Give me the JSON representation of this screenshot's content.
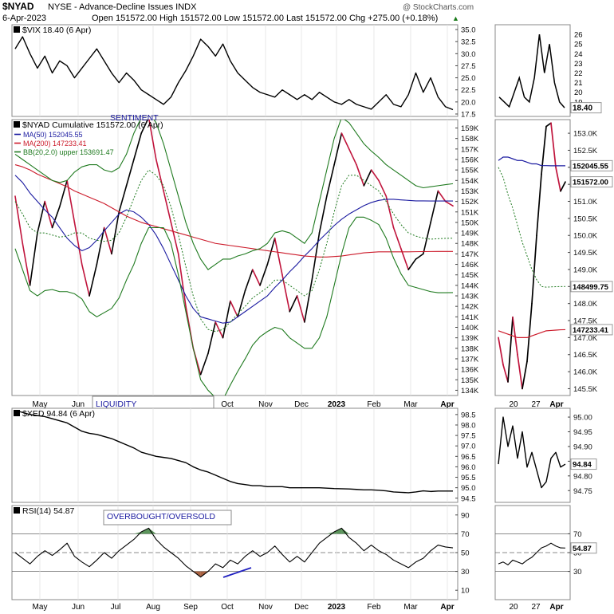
{
  "header": {
    "symbol": "$NYAD",
    "description": "NYSE - Advance-Decline Issues  INDX",
    "watermark": "@ StockCharts.com",
    "date": "6-Apr-2023",
    "quote": "Open 151572.00  High 151572.00  Low 151572.00  Last 151572.00  Chg +275.00 (+0.18%)",
    "quote_arrow": "▲"
  },
  "colors": {
    "price": "#000000",
    "decline": "#c0143c",
    "ma50": "#1a1aa0",
    "ma200": "#cc1a2a",
    "bband": "#1f7a1f",
    "rsi_fill": "#4a8a4a",
    "rsi_low_fill": "#a0522d",
    "annotation": "#1a1aa0",
    "panel_border": "#888888"
  },
  "months_main": [
    "May",
    "Jun",
    "Jul",
    "Aug",
    "Sep",
    "Oct",
    "Nov",
    "Dec",
    "2023",
    "Feb",
    "Mar",
    "Apr"
  ],
  "months_bottom": [
    "May",
    "Jun",
    "Jul",
    "Aug",
    "Sep",
    "Oct",
    "Nov",
    "Dec",
    "2023",
    "Feb",
    "Mar",
    "Apr"
  ],
  "months_side": [
    "20",
    "27",
    "Apr"
  ],
  "chart_data": [
    {
      "id": "vix",
      "type": "line",
      "title": "$VIX 18.40 (6 Apr)",
      "ylim": [
        17,
        36
      ],
      "ticks": [
        "35.0",
        "32.5",
        "30.0",
        "27.5",
        "25.0",
        "22.5",
        "20.0",
        "17.5"
      ],
      "series": [
        {
          "name": "$VIX",
          "values": [
            31.0,
            33.5,
            30.0,
            27.0,
            29.5,
            26.0,
            28.5,
            27.5,
            25.0,
            27.0,
            29.0,
            31.0,
            28.5,
            26.0,
            24.0,
            26.0,
            24.5,
            22.5,
            21.5,
            20.5,
            19.5,
            21.0,
            24.0,
            26.5,
            29.5,
            33.0,
            31.5,
            29.5,
            32.0,
            28.5,
            26.0,
            24.5,
            23.0,
            22.0,
            21.5,
            21.0,
            22.5,
            21.5,
            20.5,
            21.5,
            20.5,
            22.0,
            21.0,
            20.0,
            19.5,
            20.5,
            19.5,
            19.0,
            18.5,
            20.0,
            21.5,
            19.5,
            19.0,
            21.5,
            26.0,
            22.0,
            25.0,
            21.0,
            19.0,
            18.4
          ]
        }
      ],
      "last_label": "18.40"
    },
    {
      "id": "nyad",
      "type": "line",
      "title": "$NYAD Cumulative 151572.00 (6 Apr)",
      "ylim": [
        133500,
        159800
      ],
      "ticks": [
        "159K",
        "158K",
        "157K",
        "156K",
        "155K",
        "154K",
        "153K",
        "152K",
        "151K",
        "150K",
        "149K",
        "148K",
        "147K",
        "146K",
        "145K",
        "144K",
        "143K",
        "142K",
        "141K",
        "140K",
        "139K",
        "138K",
        "137K",
        "136K",
        "135K",
        "134K"
      ],
      "annotation": "SENTIMENT",
      "series": [
        {
          "name": "$NYAD Cumulative",
          "values": [
            152500,
            148000,
            144000,
            149000,
            152000,
            149500,
            151500,
            154000,
            150000,
            146000,
            143000,
            146000,
            149500,
            147000,
            151000,
            153500,
            156000,
            158500,
            160000,
            156000,
            153000,
            150000,
            147000,
            142000,
            138000,
            135500,
            137500,
            140500,
            139000,
            142500,
            141000,
            143500,
            145500,
            144000,
            146000,
            148500,
            145000,
            141500,
            143000,
            140500,
            144500,
            149000,
            152500,
            155500,
            158500,
            157000,
            155500,
            153500,
            155000,
            154000,
            152500,
            149500,
            147500,
            145500,
            146500,
            147000,
            150000,
            153000,
            152000,
            151572
          ]
        },
        {
          "name": "MA(50) 152045.55",
          "values": [
            154500,
            153800,
            152800,
            152000,
            151200,
            150500,
            149500,
            148500,
            147800,
            147300,
            147600,
            148300,
            149200,
            150000,
            150800,
            151200,
            151000,
            150500,
            149800,
            148800,
            147500,
            146000,
            144500,
            143000,
            141800,
            141000,
            140800,
            140600,
            140400,
            140500,
            141000,
            141500,
            142000,
            142500,
            143000,
            143800,
            144500,
            145300,
            146000,
            146800,
            147500,
            148300,
            149000,
            149700,
            150300,
            150800,
            151200,
            151600,
            151900,
            152100,
            152200,
            152200,
            152150,
            152100,
            152050,
            152050,
            152045,
            152045,
            152045,
            152045
          ]
        },
        {
          "name": "MA(200) 147233.41",
          "values": [
            155500,
            155300,
            155000,
            154600,
            154300,
            154000,
            153700,
            153400,
            153000,
            152700,
            152400,
            152100,
            151800,
            151400,
            151000,
            150600,
            150300,
            150000,
            149800,
            149600,
            149400,
            149200,
            149000,
            148800,
            148600,
            148400,
            148200,
            148000,
            147900,
            147800,
            147700,
            147600,
            147500,
            147400,
            147300,
            147200,
            147100,
            147000,
            146900,
            146800,
            146750,
            146700,
            146700,
            146750,
            146800,
            146900,
            147000,
            147100,
            147150,
            147200,
            147200,
            147200,
            147200,
            147200,
            147210,
            147220,
            147230,
            147233,
            147233,
            147233
          ]
        },
        {
          "name": "BB(20,2.0) upper 153691.47",
          "values": [
            156500,
            156000,
            155500,
            155000,
            154500,
            154000,
            153800,
            154000,
            154800,
            155300,
            155500,
            155500,
            155000,
            154800,
            155200,
            156500,
            158500,
            160000,
            160500,
            159500,
            157500,
            155000,
            152500,
            150000,
            148000,
            146500,
            145500,
            146000,
            146500,
            146500,
            146800,
            147000,
            147300,
            147500,
            148000,
            149000,
            149200,
            149000,
            148500,
            148000,
            149000,
            152000,
            155000,
            158000,
            160000,
            159500,
            158500,
            157500,
            156800,
            156200,
            155500,
            155000,
            154500,
            154000,
            153500,
            153300,
            153400,
            153500,
            153600,
            153691
          ]
        },
        {
          "name": "BB(20,2.0) mid 148499.75",
          "values": [
            152000,
            150800,
            149500,
            149000,
            149000,
            148800,
            148600,
            148700,
            149000,
            149000,
            148500,
            148300,
            148200,
            148300,
            149000,
            150500,
            152300,
            154000,
            155000,
            154500,
            153500,
            151500,
            148800,
            145800,
            143000,
            140800,
            139800,
            139600,
            139800,
            140500,
            141300,
            142000,
            142800,
            143300,
            143800,
            144500,
            144500,
            144000,
            143500,
            143000,
            143500,
            145500,
            148000,
            151000,
            153500,
            154500,
            154500,
            154000,
            153500,
            153000,
            152000,
            150800,
            149800,
            149000,
            148700,
            148500,
            148400,
            148450,
            148480,
            148500
          ]
        },
        {
          "name": "BB(20,2.0) lower 143308.03",
          "values": [
            147500,
            145500,
            143500,
            143000,
            143500,
            143600,
            143400,
            143400,
            143200,
            142700,
            141500,
            141000,
            141400,
            141800,
            142800,
            144500,
            146000,
            148000,
            149500,
            149500,
            149500,
            148000,
            145000,
            141500,
            138000,
            135000,
            134000,
            133300,
            133100,
            134500,
            135800,
            137000,
            138300,
            139100,
            139600,
            140000,
            139800,
            139000,
            138500,
            138000,
            138000,
            139000,
            141000,
            144000,
            147000,
            149500,
            150500,
            150500,
            150200,
            149800,
            148500,
            146600,
            145100,
            144000,
            143800,
            143600,
            143400,
            143300,
            143300,
            143308
          ]
        }
      ],
      "last_labels": [
        "153K",
        "152K",
        "151K"
      ]
    },
    {
      "id": "nyad_zoom",
      "type": "line",
      "ylim": [
        145300,
        153400
      ],
      "ticks": [
        "153.0K",
        "152.5K",
        "152.0K",
        "151.5K",
        "151.0K",
        "150.5K",
        "150.0K",
        "149.5K",
        "149.0K",
        "148.5K",
        "148.0K",
        "147.5K",
        "147.0K",
        "146.5K",
        "146.0K",
        "145.5K"
      ],
      "value_labels": [
        "152045.55",
        "151572.00",
        "148499.75",
        "147233.41"
      ],
      "series": [
        {
          "name": "$NYAD Cumulative",
          "values": [
            147000,
            146200,
            145700,
            147600,
            146500,
            145500,
            146300,
            148000,
            150000,
            151800,
            153200,
            153300,
            152000,
            151300,
            151572
          ]
        },
        {
          "name": "MA(50)",
          "values": [
            152200,
            152300,
            152300,
            152250,
            152200,
            152200,
            152150,
            152100,
            152100,
            152050,
            152050,
            152045,
            152045,
            152045,
            152045
          ]
        },
        {
          "name": "MA(200)",
          "values": [
            147200,
            147150,
            147100,
            147050,
            147000,
            147000,
            147000,
            147050,
            147100,
            147150,
            147200,
            147210,
            147220,
            147230,
            147233
          ]
        },
        {
          "name": "BB mid",
          "values": [
            152000,
            151700,
            151200,
            150800,
            150300,
            149800,
            149400,
            149000,
            148700,
            148500,
            148480,
            148490,
            148495,
            148498,
            148500
          ]
        }
      ]
    },
    {
      "id": "xed",
      "type": "line",
      "title": "$XED 94.84 (6 Apr)",
      "annotation": "LIQUIDITY",
      "ylim": [
        94.3,
        98.8
      ],
      "ticks": [
        "98.5",
        "98.0",
        "97.5",
        "97.0",
        "96.5",
        "96.0",
        "95.5",
        "95.0",
        "94.5"
      ],
      "series": [
        {
          "name": "$XED",
          "values": [
            98.7,
            98.6,
            98.5,
            98.45,
            98.4,
            98.3,
            98.2,
            98.1,
            97.9,
            97.7,
            97.6,
            97.55,
            97.45,
            97.35,
            97.2,
            97.05,
            96.9,
            96.7,
            96.6,
            96.5,
            96.45,
            96.4,
            96.3,
            96.2,
            96.0,
            95.85,
            95.75,
            95.6,
            95.45,
            95.3,
            95.2,
            95.15,
            95.1,
            95.1,
            95.05,
            95.05,
            95.05,
            95.0,
            95.0,
            95.0,
            95.0,
            95.0,
            94.98,
            94.96,
            94.95,
            94.94,
            94.92,
            94.9,
            94.9,
            94.88,
            94.85,
            94.8,
            94.78,
            94.76,
            94.8,
            94.85,
            94.82,
            94.84,
            94.84,
            94.84
          ]
        }
      ],
      "last_label": "94.84"
    },
    {
      "id": "xed_zoom",
      "type": "line",
      "ylim": [
        94.71,
        95.03
      ],
      "ticks": [
        "95.00",
        "94.95",
        "94.90",
        "94.85",
        "94.80",
        "94.75"
      ],
      "series": [
        {
          "name": "$XED",
          "values": [
            94.84,
            95.0,
            94.9,
            94.97,
            94.86,
            94.95,
            94.83,
            94.88,
            94.82,
            94.76,
            94.78,
            94.86,
            94.88,
            94.83,
            94.84
          ]
        }
      ],
      "last_label": "94.84"
    },
    {
      "id": "rsi",
      "type": "line",
      "title": "RSI(14) 54.87",
      "annotation": "OVERBOUGHT/OVERSOLD",
      "ylim": [
        0,
        100
      ],
      "ticks": [
        "90",
        "70",
        "50",
        "30",
        "10"
      ],
      "series": [
        {
          "name": "RSI(14)",
          "values": [
            50,
            44,
            38,
            46,
            52,
            47,
            53,
            60,
            46,
            40,
            35,
            42,
            50,
            44,
            52,
            58,
            64,
            72,
            76,
            64,
            56,
            50,
            44,
            36,
            30,
            24,
            30,
            38,
            34,
            42,
            38,
            46,
            52,
            46,
            50,
            57,
            48,
            40,
            46,
            40,
            50,
            60,
            66,
            72,
            76,
            66,
            60,
            52,
            58,
            52,
            48,
            42,
            38,
            34,
            40,
            44,
            52,
            58,
            56,
            55
          ]
        }
      ],
      "last_label": "54.87"
    },
    {
      "id": "rsi_zoom",
      "type": "line",
      "ylim": [
        0,
        100
      ],
      "ticks": [
        "70",
        "50",
        "30"
      ],
      "series": [
        {
          "name": "RSI(14)",
          "values": [
            38,
            40,
            37,
            42,
            40,
            38,
            42,
            45,
            50,
            55,
            57,
            60,
            57,
            55,
            54.87
          ]
        }
      ],
      "last_label": "54.87"
    }
  ]
}
